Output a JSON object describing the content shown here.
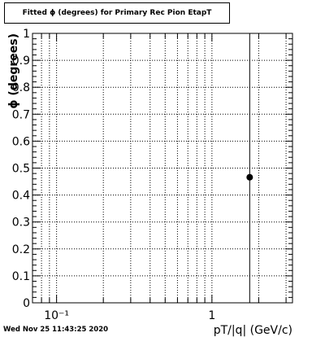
{
  "title": "Fitted ϕ (degrees) for Primary Rec Pion EtapT",
  "timestamp": "Wed Nov 25 11:43:25 2020",
  "chart_data": {
    "type": "scatter",
    "title": "Fitted ϕ (degrees) for Primary Rec Pion EtapT",
    "xlabel": "pT/|q| (GeV/c)",
    "ylabel": "ϕ (degrees)",
    "xscale": "log",
    "xlim": [
      0.07,
      3.3
    ],
    "ylim": [
      0,
      1
    ],
    "grid": true,
    "x_ticklabels": [
      "10⁻¹",
      "1"
    ],
    "y_ticklabels": [
      "0",
      "0.1",
      "0.2",
      "0.3",
      "0.4",
      "0.5",
      "0.6",
      "0.7",
      "0.8",
      "0.9",
      "1"
    ],
    "series": [
      {
        "points": [
          {
            "x": 1.75,
            "y": 0.466,
            "yerr_low": 0.466,
            "yerr_high": 0.534
          }
        ]
      }
    ]
  }
}
